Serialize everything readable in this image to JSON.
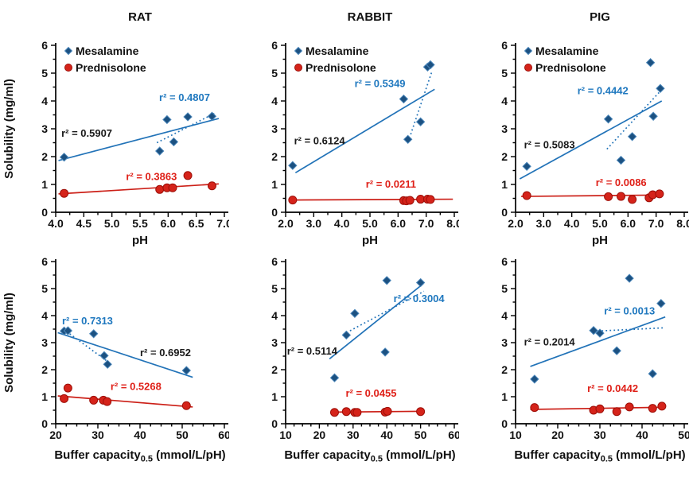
{
  "figure": {
    "background": "#ffffff",
    "ylabel": "Solubility (mg/ml)"
  },
  "colors": {
    "axis": "#000000",
    "tick_text": "#111111",
    "blue_line": "#2273b8",
    "blue_text": "#1f78bf",
    "red_line": "#cc2018",
    "red_text": "#df2018",
    "black_text": "#1a1a1a",
    "diamond_fill": "#1c5181",
    "diamond_stroke": "#4a86ba",
    "circle_fill": "#d5231a",
    "circle_stroke": "#9e0f08"
  },
  "legend_labels": [
    "Mesalamine",
    "Prednisolone"
  ],
  "chart_data": [
    {
      "id": "rat-ph",
      "type": "scatter",
      "row": 0,
      "col": 0,
      "title": "RAT",
      "xlabel": {
        "text": "pH"
      },
      "ylabel": "Solubility (mg/ml)",
      "xlim": [
        4.0,
        7.0
      ],
      "xtick_step": 0.5,
      "xminor_step": 0.25,
      "xtick_decimals": 1,
      "ylim": [
        0,
        6
      ],
      "ytick_step": 1,
      "yminor_step": 0.5,
      "show_legend": true,
      "series": [
        {
          "name": "Mesalamine",
          "marker": "diamond",
          "fill": "#1c5181",
          "stroke": "#4a86ba",
          "points": [
            [
              4.15,
              1.98
            ],
            [
              5.85,
              2.2
            ],
            [
              5.98,
              3.33
            ],
            [
              6.1,
              2.53
            ],
            [
              6.35,
              3.43
            ],
            [
              6.78,
              3.45
            ]
          ]
        },
        {
          "name": "Prednisolone",
          "marker": "circle",
          "fill": "#d5231a",
          "stroke": "#9e0f08",
          "points": [
            [
              4.15,
              0.68
            ],
            [
              5.85,
              0.82
            ],
            [
              5.98,
              0.88
            ],
            [
              6.08,
              0.88
            ],
            [
              6.35,
              1.32
            ],
            [
              6.78,
              0.95
            ]
          ]
        }
      ],
      "trend_lines": [
        {
          "series": "Mesalamine",
          "style": "solid",
          "color": "#2273b8",
          "x1": 4.05,
          "y1": 1.86,
          "x2": 6.9,
          "y2": 3.37,
          "label": "r² = 0.5907",
          "label_color": "#1a1a1a",
          "label_pos": [
            4.1,
            2.72
          ]
        },
        {
          "series": "Mesalamine",
          "style": "dotted",
          "color": "#2273b8",
          "x1": 5.8,
          "y1": 2.5,
          "x2": 6.82,
          "y2": 3.55,
          "label": "r² = 0.4807",
          "label_color": "#1f78bf",
          "label_pos": [
            5.84,
            4.0
          ]
        },
        {
          "series": "Prednisolone",
          "style": "solid",
          "color": "#cc2018",
          "x1": 4.05,
          "y1": 0.66,
          "x2": 6.9,
          "y2": 1.02,
          "label": "r² = 0.3863",
          "label_color": "#df2018",
          "label_pos": [
            5.25,
            1.16
          ]
        }
      ]
    },
    {
      "id": "rabbit-ph",
      "type": "scatter",
      "row": 0,
      "col": 1,
      "title": "RABBIT",
      "xlabel": {
        "text": "pH"
      },
      "ylabel": null,
      "xlim": [
        2.0,
        8.0
      ],
      "xtick_step": 1.0,
      "xminor_step": 0.5,
      "xtick_decimals": 1,
      "ylim": [
        0,
        6
      ],
      "ytick_step": 1,
      "yminor_step": 0.5,
      "show_legend": true,
      "series": [
        {
          "name": "Mesalamine",
          "marker": "diamond",
          "fill": "#1c5181",
          "stroke": "#4a86ba",
          "points": [
            [
              2.25,
              1.68
            ],
            [
              6.2,
              4.07
            ],
            [
              6.35,
              2.62
            ],
            [
              6.8,
              3.25
            ],
            [
              7.05,
              5.22
            ],
            [
              7.15,
              5.3
            ]
          ]
        },
        {
          "name": "Prednisolone",
          "marker": "circle",
          "fill": "#d5231a",
          "stroke": "#9e0f08",
          "points": [
            [
              2.25,
              0.44
            ],
            [
              6.2,
              0.42
            ],
            [
              6.3,
              0.41
            ],
            [
              6.42,
              0.43
            ],
            [
              6.8,
              0.47
            ],
            [
              7.05,
              0.47
            ],
            [
              7.15,
              0.46
            ]
          ]
        }
      ],
      "trend_lines": [
        {
          "series": "Mesalamine",
          "style": "solid",
          "color": "#2273b8",
          "x1": 2.35,
          "y1": 1.42,
          "x2": 7.3,
          "y2": 4.42,
          "label": "r² = 0.6124",
          "label_color": "#1a1a1a",
          "label_pos": [
            2.3,
            2.45
          ]
        },
        {
          "series": "Mesalamine",
          "style": "dotted",
          "color": "#2273b8",
          "x1": 6.45,
          "y1": 2.8,
          "x2": 7.2,
          "y2": 5.05,
          "label": "r² = 0.5349",
          "label_color": "#1f78bf",
          "label_pos": [
            4.45,
            4.5
          ]
        },
        {
          "series": "Prednisolone",
          "style": "solid",
          "color": "#cc2018",
          "x1": 2.25,
          "y1": 0.44,
          "x2": 7.95,
          "y2": 0.47,
          "label": "r² = 0.0211",
          "label_color": "#df2018",
          "label_pos": [
            4.85,
            0.88
          ]
        }
      ]
    },
    {
      "id": "pig-ph",
      "type": "scatter",
      "row": 0,
      "col": 2,
      "title": "PIG",
      "xlabel": {
        "text": "pH"
      },
      "ylabel": null,
      "xlim": [
        2.0,
        8.0
      ],
      "xtick_step": 1.0,
      "xminor_step": 0.5,
      "xtick_decimals": 1,
      "ylim": [
        0,
        6
      ],
      "ytick_step": 1,
      "yminor_step": 0.5,
      "show_legend": true,
      "series": [
        {
          "name": "Mesalamine",
          "marker": "diamond",
          "fill": "#1c5181",
          "stroke": "#4a86ba",
          "points": [
            [
              2.4,
              1.65
            ],
            [
              5.3,
              3.35
            ],
            [
              5.75,
              1.87
            ],
            [
              6.15,
              2.72
            ],
            [
              6.8,
              5.38
            ],
            [
              6.9,
              3.45
            ],
            [
              7.15,
              4.45
            ]
          ]
        },
        {
          "name": "Prednisolone",
          "marker": "circle",
          "fill": "#d5231a",
          "stroke": "#9e0f08",
          "points": [
            [
              2.4,
              0.6
            ],
            [
              5.3,
              0.56
            ],
            [
              5.75,
              0.57
            ],
            [
              6.15,
              0.46
            ],
            [
              6.75,
              0.52
            ],
            [
              6.88,
              0.63
            ],
            [
              7.12,
              0.66
            ]
          ]
        }
      ],
      "trend_lines": [
        {
          "series": "Mesalamine",
          "style": "solid",
          "color": "#2273b8",
          "x1": 2.15,
          "y1": 1.2,
          "x2": 7.2,
          "y2": 4.0,
          "label": "r² = 0.5083",
          "label_color": "#1a1a1a",
          "label_pos": [
            2.3,
            2.3
          ]
        },
        {
          "series": "Mesalamine",
          "style": "dotted",
          "color": "#2273b8",
          "x1": 5.25,
          "y1": 2.27,
          "x2": 7.1,
          "y2": 4.3,
          "label": "r² = 0.4442",
          "label_color": "#1f78bf",
          "label_pos": [
            4.2,
            4.25
          ]
        },
        {
          "series": "Prednisolone",
          "style": "solid",
          "color": "#cc2018",
          "x1": 2.2,
          "y1": 0.57,
          "x2": 7.2,
          "y2": 0.62,
          "label": "r² = 0.0086",
          "label_color": "#df2018",
          "label_pos": [
            4.85,
            0.95
          ]
        }
      ]
    },
    {
      "id": "rat-buffer",
      "type": "scatter",
      "row": 1,
      "col": 0,
      "title": null,
      "xlabel": {
        "text": "Buffer capacity",
        "sub": "0.5",
        "post": " (mmol/L/pH)"
      },
      "ylabel": "Solubility (mg/ml)",
      "xlim": [
        20,
        60
      ],
      "xtick_step": 10,
      "xminor_step": 2.5,
      "xtick_decimals": 0,
      "ylim": [
        0,
        6
      ],
      "ytick_step": 1,
      "yminor_step": 0.5,
      "show_legend": false,
      "series": [
        {
          "name": "Mesalamine",
          "marker": "diamond",
          "fill": "#1c5181",
          "stroke": "#4a86ba",
          "points": [
            [
              22,
              3.43
            ],
            [
              22.9,
              3.44
            ],
            [
              29,
              3.33
            ],
            [
              31.5,
              2.52
            ],
            [
              32.3,
              2.2
            ],
            [
              51,
              1.97
            ]
          ]
        },
        {
          "name": "Prednisolone",
          "marker": "circle",
          "fill": "#d5231a",
          "stroke": "#9e0f08",
          "points": [
            [
              22,
              0.93
            ],
            [
              22.9,
              1.32
            ],
            [
              29,
              0.87
            ],
            [
              31.3,
              0.87
            ],
            [
              32.2,
              0.82
            ],
            [
              51,
              0.67
            ]
          ]
        }
      ],
      "trend_lines": [
        {
          "series": "Mesalamine",
          "style": "dotted",
          "color": "#2273b8",
          "x1": 21.8,
          "y1": 3.5,
          "x2": 32.5,
          "y2": 2.28,
          "label": "r² = 0.7313",
          "label_color": "#1f78bf",
          "label_pos": [
            21.5,
            3.68
          ]
        },
        {
          "series": "Mesalamine",
          "style": "solid",
          "color": "#2273b8",
          "x1": 20.5,
          "y1": 3.37,
          "x2": 52.5,
          "y2": 1.72,
          "label": "r² = 0.6952",
          "label_color": "#1a1a1a",
          "label_pos": [
            40.0,
            2.5
          ]
        },
        {
          "series": "Prednisolone",
          "style": "solid",
          "color": "#cc2018",
          "x1": 20.5,
          "y1": 1.03,
          "x2": 52.5,
          "y2": 0.62,
          "label": "r² = 0.5268",
          "label_color": "#df2018",
          "label_pos": [
            33.0,
            1.25
          ]
        }
      ]
    },
    {
      "id": "rabbit-buffer",
      "type": "scatter",
      "row": 1,
      "col": 1,
      "title": null,
      "xlabel": {
        "text": "Buffer capacity",
        "sub": "0.5",
        "post": " (mmol/L/pH)"
      },
      "ylabel": null,
      "xlim": [
        10,
        60
      ],
      "xtick_step": 10,
      "xminor_step": 2.5,
      "xtick_decimals": 0,
      "ylim": [
        0,
        6
      ],
      "ytick_step": 1,
      "yminor_step": 0.5,
      "show_legend": false,
      "series": [
        {
          "name": "Mesalamine",
          "marker": "diamond",
          "fill": "#1c5181",
          "stroke": "#4a86ba",
          "points": [
            [
              24.5,
              1.7
            ],
            [
              28,
              3.28
            ],
            [
              30.5,
              4.08
            ],
            [
              39.5,
              2.65
            ],
            [
              40,
              5.3
            ],
            [
              50,
              5.22
            ]
          ]
        },
        {
          "name": "Prednisolone",
          "marker": "circle",
          "fill": "#d5231a",
          "stroke": "#9e0f08",
          "points": [
            [
              24.5,
              0.42
            ],
            [
              28,
              0.45
            ],
            [
              30.5,
              0.42
            ],
            [
              31.2,
              0.42
            ],
            [
              39.5,
              0.43
            ],
            [
              40.2,
              0.46
            ],
            [
              50,
              0.45
            ]
          ]
        }
      ],
      "trend_lines": [
        {
          "series": "Mesalamine",
          "style": "solid",
          "color": "#2273b8",
          "x1": 23.0,
          "y1": 2.4,
          "x2": 50.8,
          "y2": 5.18,
          "label": "r² = 0.5114",
          "label_color": "#1a1a1a",
          "label_pos": [
            10.4,
            2.56
          ]
        },
        {
          "series": "Mesalamine",
          "style": "dotted",
          "color": "#2273b8",
          "x1": 27.0,
          "y1": 3.3,
          "x2": 51.0,
          "y2": 4.9,
          "label": "r² = 0.3004",
          "label_color": "#1f78bf",
          "label_pos": [
            42.0,
            4.5
          ]
        },
        {
          "series": "Prednisolone",
          "style": "solid",
          "color": "#cc2018",
          "x1": 24.0,
          "y1": 0.43,
          "x2": 50.5,
          "y2": 0.46,
          "label": "r² = 0.0455",
          "label_color": "#df2018",
          "label_pos": [
            27.8,
            1.0
          ]
        }
      ]
    },
    {
      "id": "pig-buffer",
      "type": "scatter",
      "row": 1,
      "col": 2,
      "title": null,
      "xlabel": {
        "text": "Buffer capacity",
        "sub": "0.5",
        "post": " (mmol/L/pH)"
      },
      "ylabel": null,
      "xlim": [
        10,
        50
      ],
      "xtick_step": 10,
      "xminor_step": 2.5,
      "xtick_decimals": 0,
      "ylim": [
        0,
        6
      ],
      "ytick_step": 1,
      "yminor_step": 0.5,
      "show_legend": false,
      "series": [
        {
          "name": "Mesalamine",
          "marker": "diamond",
          "fill": "#1c5181",
          "stroke": "#4a86ba",
          "points": [
            [
              14.5,
              1.65
            ],
            [
              28.5,
              3.45
            ],
            [
              30,
              3.35
            ],
            [
              34,
              2.7
            ],
            [
              37,
              5.38
            ],
            [
              42.5,
              1.85
            ],
            [
              44.5,
              4.45
            ]
          ]
        },
        {
          "name": "Prednisolone",
          "marker": "circle",
          "fill": "#d5231a",
          "stroke": "#9e0f08",
          "points": [
            [
              14.5,
              0.6
            ],
            [
              28.5,
              0.5
            ],
            [
              30,
              0.55
            ],
            [
              34,
              0.45
            ],
            [
              37,
              0.62
            ],
            [
              42.5,
              0.57
            ],
            [
              44.7,
              0.65
            ]
          ]
        }
      ],
      "trend_lines": [
        {
          "series": "Mesalamine",
          "style": "solid",
          "color": "#2273b8",
          "x1": 13.5,
          "y1": 2.12,
          "x2": 45.5,
          "y2": 3.95,
          "label": "r² = 0.2014",
          "label_color": "#1a1a1a",
          "label_pos": [
            12.0,
            2.9
          ]
        },
        {
          "series": "Mesalamine",
          "style": "dotted",
          "color": "#2273b8",
          "x1": 29.5,
          "y1": 3.43,
          "x2": 45.5,
          "y2": 3.55,
          "label": "r² = 0.0013",
          "label_color": "#1f78bf",
          "label_pos": [
            31.0,
            4.05
          ]
        },
        {
          "series": "Prednisolone",
          "style": "solid",
          "color": "#cc2018",
          "x1": 13.5,
          "y1": 0.53,
          "x2": 45.5,
          "y2": 0.61,
          "label": "r² = 0.0442",
          "label_color": "#df2018",
          "label_pos": [
            27.0,
            1.18
          ]
        }
      ]
    }
  ]
}
